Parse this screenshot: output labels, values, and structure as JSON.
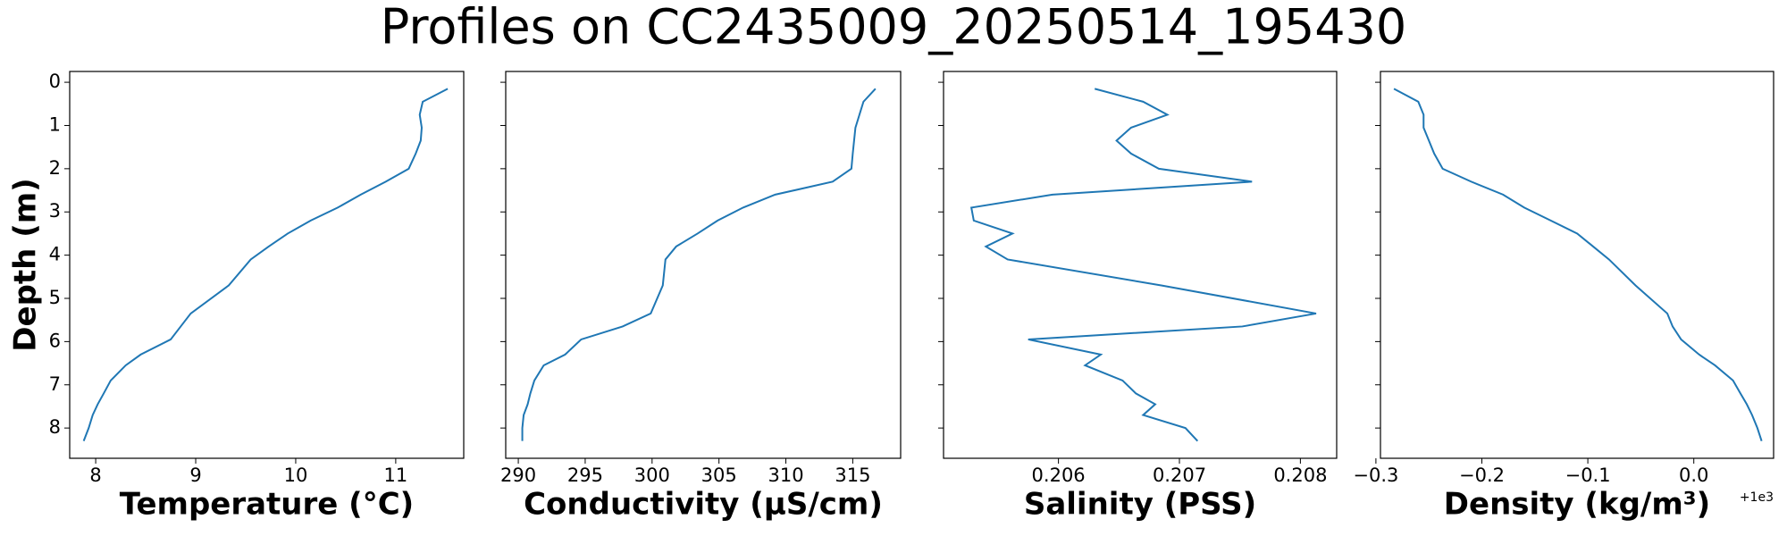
{
  "title": "Profiles on CC2435009_20250514_195430",
  "chart_data": [
    {
      "type": "line",
      "xlabel": "Temperature (°C)",
      "ylabel": "Depth (m)",
      "color": "#1f77b4",
      "x": [
        11.52,
        11.27,
        11.24,
        11.26,
        11.25,
        11.2,
        11.13,
        10.9,
        10.65,
        10.42,
        10.15,
        9.92,
        9.73,
        9.55,
        9.33,
        8.95,
        8.85,
        8.75,
        8.45,
        8.3,
        8.15,
        8.08,
        8.02,
        7.97,
        7.93,
        7.88
      ],
      "y": [
        0.15,
        0.45,
        0.75,
        1.05,
        1.35,
        1.65,
        2.0,
        2.3,
        2.6,
        2.9,
        3.2,
        3.5,
        3.8,
        4.1,
        4.7,
        5.35,
        5.65,
        5.95,
        6.3,
        6.55,
        6.9,
        7.2,
        7.45,
        7.7,
        8.0,
        8.3
      ],
      "xlim": [
        7.74,
        11.68
      ],
      "xticks": [
        8,
        9,
        10,
        11
      ],
      "ylim": [
        8.7,
        -0.25
      ],
      "yticks": [
        0,
        1,
        2,
        3,
        4,
        5,
        6,
        7,
        8
      ],
      "show_ytick_labels": true
    },
    {
      "type": "line",
      "xlabel": "Conductivity (µS/cm)",
      "color": "#1f77b4",
      "x": [
        316.7,
        315.8,
        315.5,
        315.2,
        315.1,
        315.0,
        314.9,
        313.5,
        309.2,
        306.8,
        304.9,
        303.4,
        301.8,
        301.0,
        300.8,
        299.9,
        297.8,
        294.7,
        293.5,
        291.9,
        291.2,
        290.9,
        290.7,
        290.4,
        290.3,
        290.3
      ],
      "y": [
        0.15,
        0.45,
        0.75,
        1.05,
        1.35,
        1.65,
        2.0,
        2.3,
        2.6,
        2.9,
        3.2,
        3.5,
        3.8,
        4.1,
        4.7,
        5.35,
        5.65,
        5.95,
        6.3,
        6.55,
        6.9,
        7.2,
        7.45,
        7.7,
        8.0,
        8.3
      ],
      "xlim": [
        289.06,
        318.58
      ],
      "xticks": [
        290,
        295,
        300,
        305,
        310,
        315
      ],
      "ylim": [
        8.7,
        -0.25
      ],
      "yticks": [
        0,
        1,
        2,
        3,
        4,
        5,
        6,
        7,
        8
      ],
      "show_ytick_labels": false
    },
    {
      "type": "line",
      "xlabel": "Salinity (PSS)",
      "color": "#1f77b4",
      "x": [
        0.2063,
        0.2067,
        0.2069,
        0.2066,
        0.20648,
        0.2066,
        0.20683,
        0.2076,
        0.20595,
        0.20528,
        0.2053,
        0.20562,
        0.2054,
        0.20558,
        0.20685,
        0.20813,
        0.20752,
        0.20575,
        0.20635,
        0.20622,
        0.20653,
        0.20664,
        0.2068,
        0.2067,
        0.20705,
        0.20715
      ],
      "y": [
        0.15,
        0.45,
        0.75,
        1.05,
        1.35,
        1.65,
        2.0,
        2.3,
        2.6,
        2.9,
        3.2,
        3.5,
        3.8,
        4.1,
        4.7,
        5.35,
        5.65,
        5.95,
        6.3,
        6.55,
        6.9,
        7.2,
        7.45,
        7.7,
        8.0,
        8.3
      ],
      "xlim": [
        0.20505,
        0.2083
      ],
      "xticks": [
        0.206,
        0.207,
        0.208
      ],
      "ylim": [
        8.7,
        -0.25
      ],
      "yticks": [
        0,
        1,
        2,
        3,
        4,
        5,
        6,
        7,
        8
      ],
      "show_ytick_labels": false
    },
    {
      "type": "line",
      "xlabel": "Density (kg/m³)",
      "x_offset_label": "+1e3",
      "color": "#1f77b4",
      "x": [
        -0.283,
        -0.26,
        -0.255,
        -0.255,
        -0.25,
        -0.245,
        -0.237,
        -0.21,
        -0.18,
        -0.16,
        -0.135,
        -0.11,
        -0.095,
        -0.08,
        -0.055,
        -0.025,
        -0.02,
        -0.012,
        0.005,
        0.02,
        0.037,
        0.044,
        0.05,
        0.055,
        0.06,
        0.064
      ],
      "y": [
        0.15,
        0.45,
        0.75,
        1.05,
        1.35,
        1.65,
        2.0,
        2.3,
        2.6,
        2.9,
        3.2,
        3.5,
        3.8,
        4.1,
        4.7,
        5.35,
        5.65,
        5.95,
        6.3,
        6.55,
        6.9,
        7.2,
        7.45,
        7.7,
        8.0,
        8.3
      ],
      "xlim": [
        -0.2957,
        0.0753
      ],
      "xticks": [
        {
          "value": -0.3,
          "label": "−0.3"
        },
        {
          "value": -0.2,
          "label": "−0.2"
        },
        {
          "value": -0.1,
          "label": "−0.1"
        },
        {
          "value": 0.0,
          "label": "0.0"
        }
      ],
      "ylim": [
        8.7,
        -0.25
      ],
      "yticks": [
        0,
        1,
        2,
        3,
        4,
        5,
        6,
        7,
        8
      ],
      "show_ytick_labels": false
    }
  ]
}
